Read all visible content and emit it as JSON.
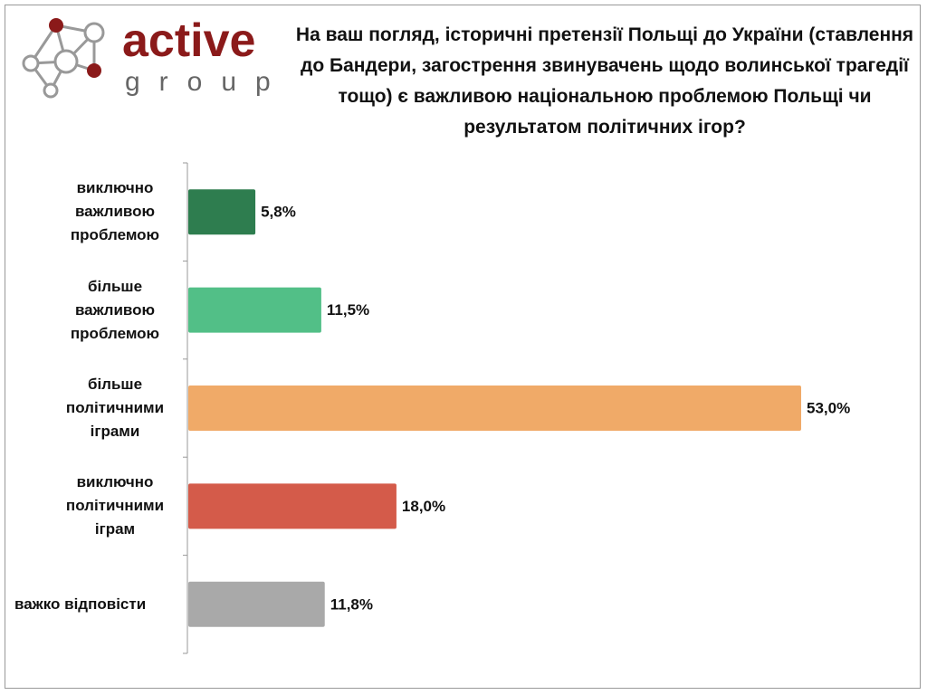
{
  "logo": {
    "name": "active",
    "subname": "group"
  },
  "chart_data": {
    "type": "bar",
    "orientation": "horizontal",
    "title": "На ваш погляд, історичні претензії Польщі до України (ставлення до Бандери, загострення звинувачень щодо волинської трагедії тощо) є важливою національною проблемою Польщі чи результатом політичних ігор?",
    "categories": [
      "виключно важливою проблемою",
      "більше важливою проблемою",
      "більше політичними іграми",
      "виключно політичними іграм",
      "важко відповісти"
    ],
    "values": [
      5.8,
      11.5,
      53.0,
      18.0,
      11.8
    ],
    "value_labels": [
      "5,8%",
      "11,5%",
      "53,0%",
      "18,0%",
      "11,8%"
    ],
    "colors": [
      "#2e7d4f",
      "#52bf87",
      "#f0aa68",
      "#d45b4a",
      "#a9a9a9"
    ]
  }
}
